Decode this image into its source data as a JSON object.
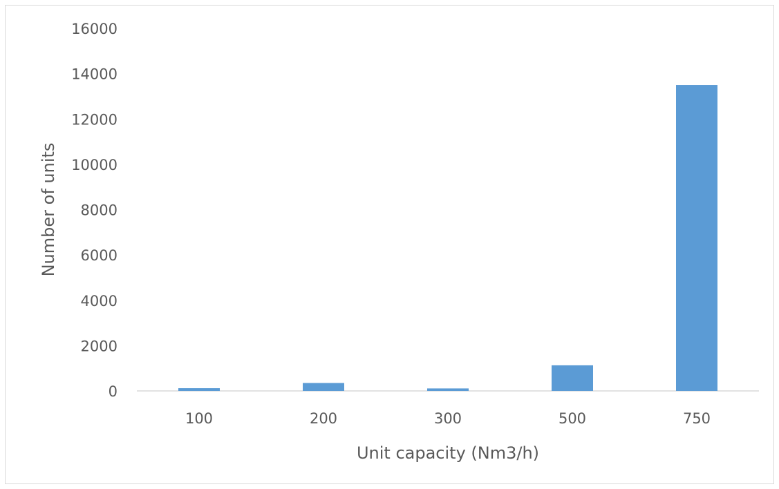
{
  "chart_data": {
    "type": "bar",
    "title": "",
    "xlabel": "Unit capacity (Nm3/h)",
    "ylabel": "Number of units",
    "categories": [
      "100",
      "200",
      "300",
      "500",
      "750"
    ],
    "values": [
      120,
      350,
      110,
      1130,
      13500
    ],
    "ylim": [
      0,
      16000
    ],
    "yticks": [
      0,
      2000,
      4000,
      6000,
      8000,
      10000,
      12000,
      14000,
      16000
    ],
    "grid": false,
    "legend": "none",
    "bar_color": "#5b9bd5",
    "axis_color": "#d9d9d9",
    "text_color": "#595959"
  }
}
